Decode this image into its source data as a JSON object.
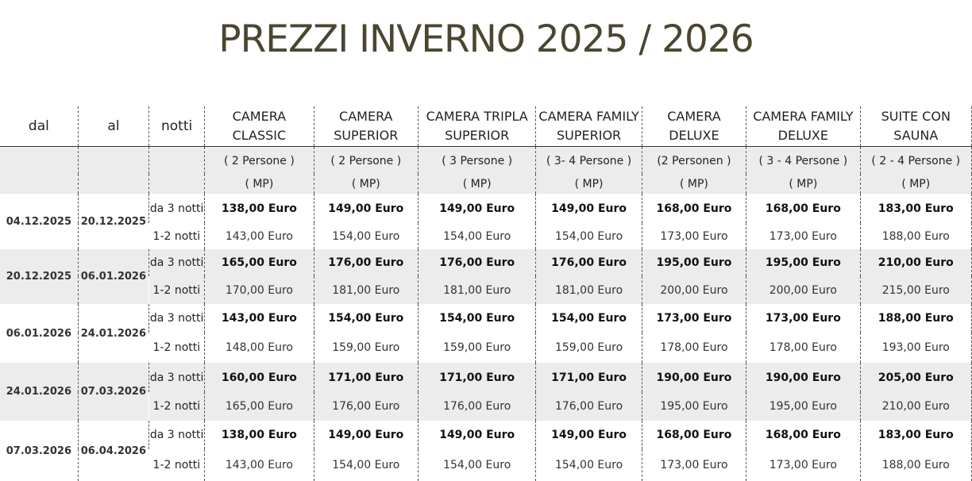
{
  "title": "PREZZI INVERNO 2025 / 2026",
  "columns": {
    "dal": "dal",
    "al": "al",
    "notti": "notti",
    "rooms": [
      {
        "line1": "CAMERA",
        "line2": "CLASSIC",
        "persons": "( 2 Persone )",
        "mp": "( MP)"
      },
      {
        "line1": "CAMERA",
        "line2": "SUPERIOR",
        "persons": "( 2 Persone )",
        "mp": "( MP)"
      },
      {
        "line1": "CAMERA TRIPLA",
        "line2": "SUPERIOR",
        "persons": "( 3 Persone )",
        "mp": "( MP)"
      },
      {
        "line1": "CAMERA FAMILY",
        "line2": "SUPERIOR",
        "persons": "( 3- 4 Persone )",
        "mp": "( MP)"
      },
      {
        "line1": "CAMERA",
        "line2": "DELUXE",
        "persons": "(2 Personen )",
        "mp": "( MP)"
      },
      {
        "line1": "CAMERA FAMILY",
        "line2": "DELUXE",
        "persons": "( 3 - 4 Persone )",
        "mp": "( MP)"
      },
      {
        "line1": "SUITE CON",
        "line2": "SAUNA",
        "persons": "( 2 - 4 Persone )",
        "mp": "( MP)"
      }
    ]
  },
  "periods": [
    {
      "dal": "04.12.2025",
      "al": "20.12.2025",
      "long_label": "da 3 notti",
      "short_label": "1-2 notti",
      "long": [
        "138,00 Euro",
        "149,00 Euro",
        "149,00 Euro",
        "149,00 Euro",
        "168,00 Euro",
        "168,00 Euro",
        "183,00 Euro"
      ],
      "short": [
        "143,00 Euro",
        "154,00 Euro",
        "154,00 Euro",
        "154,00 Euro",
        "173,00 Euro",
        "173,00 Euro",
        "188,00 Euro"
      ]
    },
    {
      "dal": "20.12.2025",
      "al": "06.01.2026",
      "long_label": "da 3 notti",
      "short_label": "1-2 notti",
      "long": [
        "165,00 Euro",
        "176,00 Euro",
        "176,00 Euro",
        "176,00 Euro",
        "195,00 Euro",
        "195,00 Euro",
        "210,00 Euro"
      ],
      "short": [
        "170,00 Euro",
        "181,00 Euro",
        "181,00 Euro",
        "181,00 Euro",
        "200,00 Euro",
        "200,00 Euro",
        "215,00 Euro"
      ]
    },
    {
      "dal": "06.01.2026",
      "al": "24.01.2026",
      "long_label": "da 3 notti",
      "short_label": "1-2 notti",
      "long": [
        "143,00 Euro",
        "154,00 Euro",
        "154,00 Euro",
        "154,00 Euro",
        "173,00 Euro",
        "173,00 Euro",
        "188,00 Euro"
      ],
      "short": [
        "148,00 Euro",
        "159,00 Euro",
        "159,00 Euro",
        "159,00 Euro",
        "178,00 Euro",
        "178,00 Euro",
        "193,00 Euro"
      ]
    },
    {
      "dal": "24.01.2026",
      "al": "07.03.2026",
      "long_label": "da 3 notti",
      "short_label": "1-2 notti",
      "long": [
        "160,00 Euro",
        "171,00 Euro",
        "171,00 Euro",
        "171,00 Euro",
        "190,00 Euro",
        "190,00 Euro",
        "205,00 Euro"
      ],
      "short": [
        "165,00 Euro",
        "176,00 Euro",
        "176,00 Euro",
        "176,00 Euro",
        "195,00 Euro",
        "195,00 Euro",
        "210,00 Euro"
      ]
    },
    {
      "dal": "07.03.2026",
      "al": "06.04.2026",
      "long_label": "da 3 notti",
      "short_label": "1-2 notti",
      "long": [
        "138,00 Euro",
        "149,00 Euro",
        "149,00 Euro",
        "149,00 Euro",
        "168,00 Euro",
        "168,00 Euro",
        "183,00 Euro"
      ],
      "short": [
        "143,00 Euro",
        "154,00 Euro",
        "154,00 Euro",
        "154,00 Euro",
        "173,00 Euro",
        "173,00 Euro",
        "188,00 Euro"
      ]
    }
  ]
}
